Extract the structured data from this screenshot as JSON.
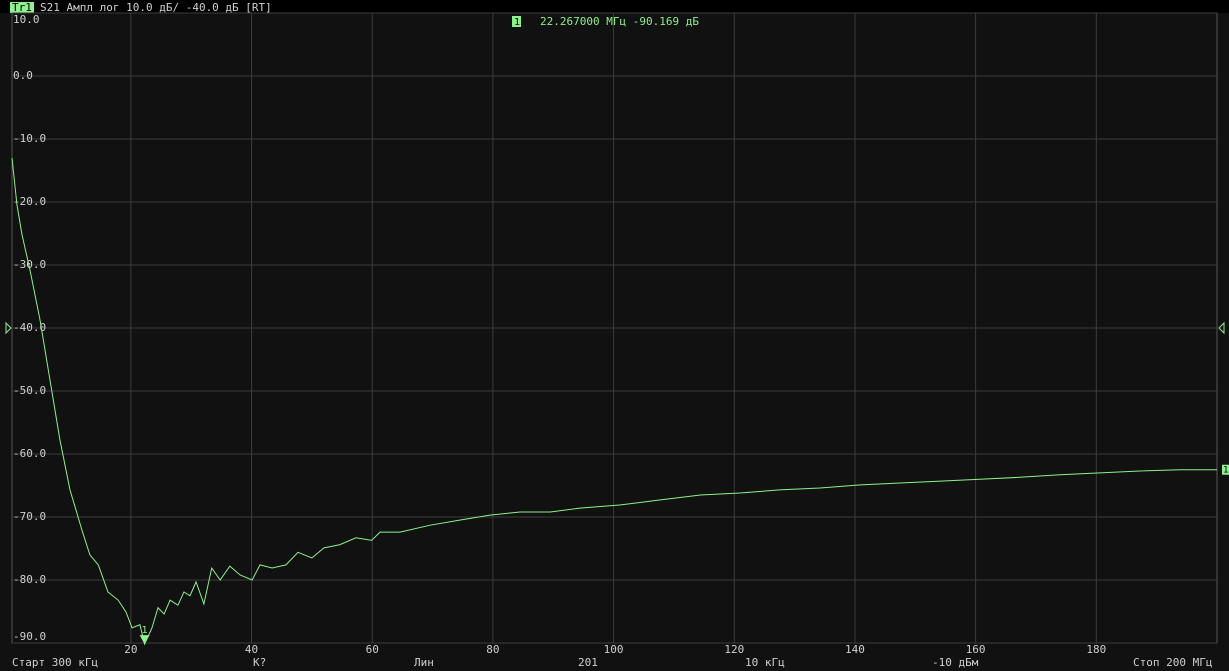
{
  "chart_data": {
    "type": "line",
    "trace_name": "Tr1",
    "title": "S21 Ампл лог 10.0 дБ/ -40.0 дБ [RT]",
    "ref_level": -40,
    "trace_end_label": "1",
    "xlim": [
      0.3,
      200
    ],
    "ylim": [
      -90,
      10
    ],
    "xticks": [
      20,
      40,
      60,
      80,
      100,
      120,
      140,
      160,
      180
    ],
    "yticks": [
      {
        "value": 10,
        "label": "10.0"
      },
      {
        "value": 0,
        "label": "0.0"
      },
      {
        "value": -10,
        "label": "-10.0"
      },
      {
        "value": -20,
        "label": "-20.0"
      },
      {
        "value": -30,
        "label": "-30.0"
      },
      {
        "value": -40,
        "label": "-40.0"
      },
      {
        "value": -50,
        "label": "-50.0"
      },
      {
        "value": -60,
        "label": "-60.0"
      },
      {
        "value": -70,
        "label": "-70.0"
      },
      {
        "value": -80,
        "label": "-80.0"
      },
      {
        "value": -90,
        "label": "-90.0"
      }
    ],
    "grid": true,
    "series": [
      {
        "name": "Tr1",
        "color": "#8ef08e",
        "x": [
          0.3,
          1.13,
          1.96,
          3.28,
          4.94,
          6.6,
          8.25,
          9.91,
          11.9,
          13.2,
          14.6,
          16.2,
          17.9,
          19.2,
          20.2,
          21.5,
          22.267,
          23.5,
          24.5,
          25.5,
          26.5,
          27.8,
          28.8,
          29.8,
          30.8,
          32.1,
          33.4,
          34.8,
          36.4,
          38.1,
          40.1,
          41.4,
          43.4,
          45.7,
          47.7,
          50,
          52,
          54.6,
          57.3,
          59.9,
          61.3,
          64.6,
          69.6,
          74.5,
          79.5,
          84.5,
          89.5,
          94.4,
          101,
          107.6,
          114.4,
          120.9,
          127.5,
          134.2,
          140.9,
          147.5,
          154.2,
          160.7,
          167.3,
          174,
          180.6,
          187.2,
          193.9,
          200
        ],
        "values": [
          -13.0,
          -20.5,
          -25.2,
          -30.8,
          -38.7,
          -48.3,
          -57.8,
          -65.7,
          -72.1,
          -76.0,
          -77.6,
          -81.9,
          -83.2,
          -85.1,
          -87.6,
          -87.1,
          -90.169,
          -87.6,
          -84.4,
          -85.4,
          -83.2,
          -84.0,
          -81.9,
          -82.5,
          -80.3,
          -83.8,
          -78.1,
          -80.0,
          -77.8,
          -79.2,
          -80.0,
          -77.6,
          -78.1,
          -77.6,
          -75.6,
          -76.5,
          -74.9,
          -74.4,
          -73.3,
          -73.7,
          -72.4,
          -72.4,
          -71.3,
          -70.5,
          -69.7,
          -69.2,
          -69.2,
          -68.6,
          -68.1,
          -67.3,
          -66.5,
          -66.2,
          -65.7,
          -65.4,
          -64.9,
          -64.6,
          -64.3,
          -64.0,
          -63.7,
          -63.3,
          -63.0,
          -62.7,
          -62.5,
          -62.5
        ]
      }
    ],
    "markers": [
      {
        "label": "1",
        "x": 22.267,
        "value": -90.169,
        "readout": "22.267000 МГц -90.169 дБ"
      }
    ],
    "status_bar": [
      "Старт 300 кГц",
      "К?",
      "Лин",
      "201",
      "10 кГц",
      "-10 дБм",
      "Стоп 200 МГц"
    ]
  }
}
